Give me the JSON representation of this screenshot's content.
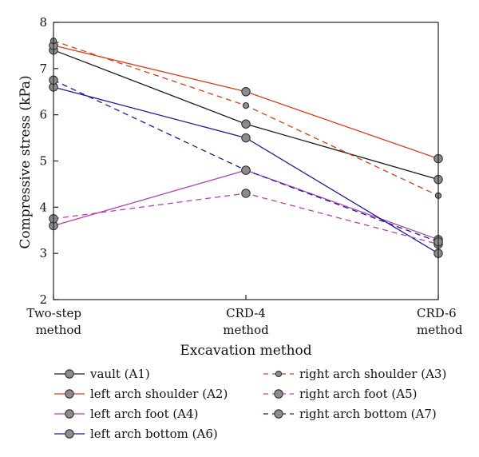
{
  "chart_data": {
    "type": "line",
    "categories": [
      "Two-step method",
      "CRD-4 method",
      "CRD-6 method"
    ],
    "category_lines": [
      [
        "Two-step",
        "method"
      ],
      [
        "CRD-4",
        "method"
      ],
      [
        "CRD-6",
        "method"
      ]
    ],
    "xlabel": "Excavation method",
    "ylabel": "Compressive stress (kPa)",
    "ylim": [
      2,
      8
    ],
    "yticks": [
      2,
      3,
      4,
      5,
      6,
      7,
      8
    ],
    "grid": false,
    "legend_position": "bottom",
    "series": [
      {
        "name": "vault (A1)",
        "values": [
          7.4,
          5.8,
          4.6
        ],
        "color": "#1a1a1a",
        "dash": "solid",
        "marker": "large"
      },
      {
        "name": "left arch shoulder (A2)",
        "values": [
          7.5,
          6.5,
          5.05
        ],
        "color": "#d2401c",
        "dash": "solid",
        "marker": "large"
      },
      {
        "name": "left arch foot (A4)",
        "values": [
          3.6,
          4.8,
          3.3
        ],
        "color": "#b342b3",
        "dash": "solid",
        "marker": "large"
      },
      {
        "name": "left arch bottom (A6)",
        "values": [
          6.6,
          5.5,
          3.0
        ],
        "color": "#1f1c8f",
        "dash": "solid",
        "marker": "large"
      },
      {
        "name": "right arch shoulder (A3)",
        "values": [
          7.6,
          6.2,
          4.25
        ],
        "color": "#d2401c",
        "dash": "dashed",
        "marker": "small"
      },
      {
        "name": "right arch foot (A5)",
        "values": [
          3.75,
          4.3,
          3.2
        ],
        "color": "#b342b3",
        "dash": "dashed",
        "marker": "large"
      },
      {
        "name": "right arch bottom (A7)",
        "values": [
          6.75,
          4.8,
          3.25
        ],
        "color": "#1f1c8f",
        "dash": "dashed",
        "marker": "large"
      }
    ]
  }
}
